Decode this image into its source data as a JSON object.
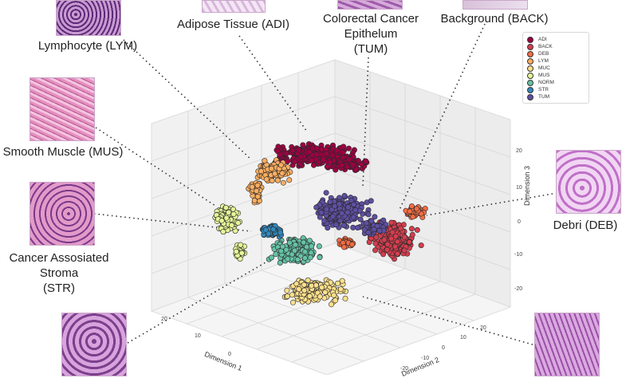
{
  "chart_data": {
    "type": "scatter",
    "title": "",
    "axes": {
      "x_label": "Dimension 1",
      "y_label": "Dimension 2",
      "z_label": "Dimension 3",
      "x_ticks": [
        "20",
        "10",
        "0"
      ],
      "y_ticks": [
        "20",
        "10",
        "0",
        "-10",
        "-20"
      ],
      "z_ticks": [
        "20",
        "10",
        "0",
        "-10",
        "-20"
      ]
    },
    "series": [
      {
        "name": "ADI",
        "color": "#9e0142"
      },
      {
        "name": "BACK",
        "color": "#d53e4f"
      },
      {
        "name": "DEB",
        "color": "#f46d43"
      },
      {
        "name": "LYM",
        "color": "#fdae61"
      },
      {
        "name": "MUC",
        "color": "#fee08b"
      },
      {
        "name": "MUS",
        "color": "#e6f598"
      },
      {
        "name": "NORM",
        "color": "#66c2a5"
      },
      {
        "name": "STR",
        "color": "#3288bd"
      },
      {
        "name": "TUM",
        "color": "#5e4fa2"
      }
    ],
    "legend_position": "top-right",
    "grid": true
  },
  "callouts": {
    "lym": "Lymphocyte (LYM)",
    "adi": "Adipose Tissue (ADI)",
    "tum_1": "Colorectal Cancer",
    "tum_2": "Epithelum",
    "tum_3": "(TUM)",
    "back": "Background (BACK)",
    "mus": "Smooth Muscle (MUS)",
    "str_1": "Cancer Assosiated",
    "str_2": "Stroma",
    "str_3": "(STR)",
    "deb": "Debri (DEB)"
  }
}
